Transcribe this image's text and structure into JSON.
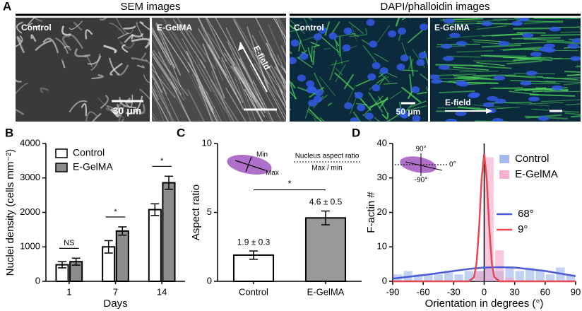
{
  "panel_a": {
    "label": "A",
    "groups": [
      {
        "title": "SEM images",
        "images": [
          {
            "label": "Control",
            "scale_bar": "30 μm"
          },
          {
            "label": "E-GelMA",
            "field": "E-field"
          }
        ]
      },
      {
        "title": "DAPI/phalloidin images",
        "images": [
          {
            "label": "Control",
            "scale_bar": "50 μm"
          },
          {
            "label": "E-GelMA",
            "field": "E-field"
          }
        ]
      }
    ]
  },
  "chart_data": [
    {
      "type": "bar",
      "panel": "B",
      "y_label": "Nuclei density (cells mm⁻²)",
      "x_label": "Days",
      "categories": [
        "1",
        "7",
        "14"
      ],
      "series": [
        {
          "name": "Control",
          "color": "#ffffff",
          "values": [
            480,
            1000,
            2080
          ],
          "errors": [
            90,
            180,
            170
          ]
        },
        {
          "name": "E-GelMA",
          "color": "#8c8c8c",
          "values": [
            570,
            1460,
            2860
          ],
          "errors": [
            100,
            120,
            190
          ]
        }
      ],
      "significance": [
        "NS",
        "*",
        "*"
      ],
      "ylim": [
        0,
        4000
      ],
      "yticks": [
        0,
        1000,
        2000,
        3000,
        4000
      ]
    },
    {
      "type": "bar",
      "panel": "C",
      "y_label": "Aspect ratio",
      "categories": [
        "Control",
        "E-GelMA"
      ],
      "values": [
        1.9,
        4.6
      ],
      "errors": [
        0.3,
        0.5
      ],
      "value_labels": [
        "1.9 ± 0.3",
        "4.6 ± 0.5"
      ],
      "colors": [
        "#ffffff",
        "#999999"
      ],
      "significance": "*",
      "inset": {
        "min": "Min",
        "max": "Max",
        "title": "Nucleus aspect ratio",
        "formula": "Max / min"
      },
      "ylim": [
        0,
        10
      ],
      "yticks": [
        0,
        5,
        10
      ]
    },
    {
      "type": "histogram",
      "panel": "D",
      "x_label": "Orientation in degrees (°)",
      "y_label": "F-actin #",
      "bins": [
        -90,
        -80,
        -70,
        -60,
        -50,
        -40,
        -30,
        -20,
        -10,
        0,
        10,
        20,
        30,
        40,
        50,
        60,
        70,
        80,
        90
      ],
      "series": [
        {
          "name": "Control",
          "color": "#8fa9ea",
          "values": [
            2,
            3,
            2,
            2,
            2,
            3,
            2,
            3,
            3,
            4,
            3,
            4,
            3,
            4,
            3,
            2,
            4,
            2
          ]
        },
        {
          "name": "E-GelMA",
          "color": "#f59cc6",
          "values": [
            0,
            0,
            0,
            0,
            0,
            0,
            0,
            0,
            3,
            36,
            9,
            1,
            0,
            0,
            0,
            0,
            0,
            0
          ]
        }
      ],
      "lines": [
        {
          "name": "68°",
          "color": "#4a5bd6",
          "x": [
            -90,
            -60,
            -30,
            -15,
            0,
            15,
            30,
            60,
            90
          ],
          "values": [
            0.8,
            1.8,
            3,
            3.6,
            4,
            4.1,
            4,
            3,
            1.5
          ]
        },
        {
          "name": "9°",
          "color": "#e8474f",
          "x": [
            -90,
            -30,
            -15,
            -10,
            -7.5,
            -5,
            -2.5,
            0,
            2.5,
            5,
            7.5,
            10,
            15,
            30,
            90
          ],
          "values": [
            0,
            0,
            0,
            1.2,
            5.3,
            15.6,
            29.8,
            37,
            29.8,
            15.6,
            5.3,
            1.2,
            0,
            0,
            0
          ]
        }
      ],
      "inset_labels": [
        "90°",
        "0°",
        "-90°"
      ],
      "xlim": [
        -90,
        90
      ],
      "xticks": [
        -90,
        -60,
        -30,
        0,
        30,
        60,
        90
      ],
      "ylim": [
        0,
        40
      ],
      "yticks": [
        0,
        10,
        20,
        30,
        40
      ]
    }
  ]
}
